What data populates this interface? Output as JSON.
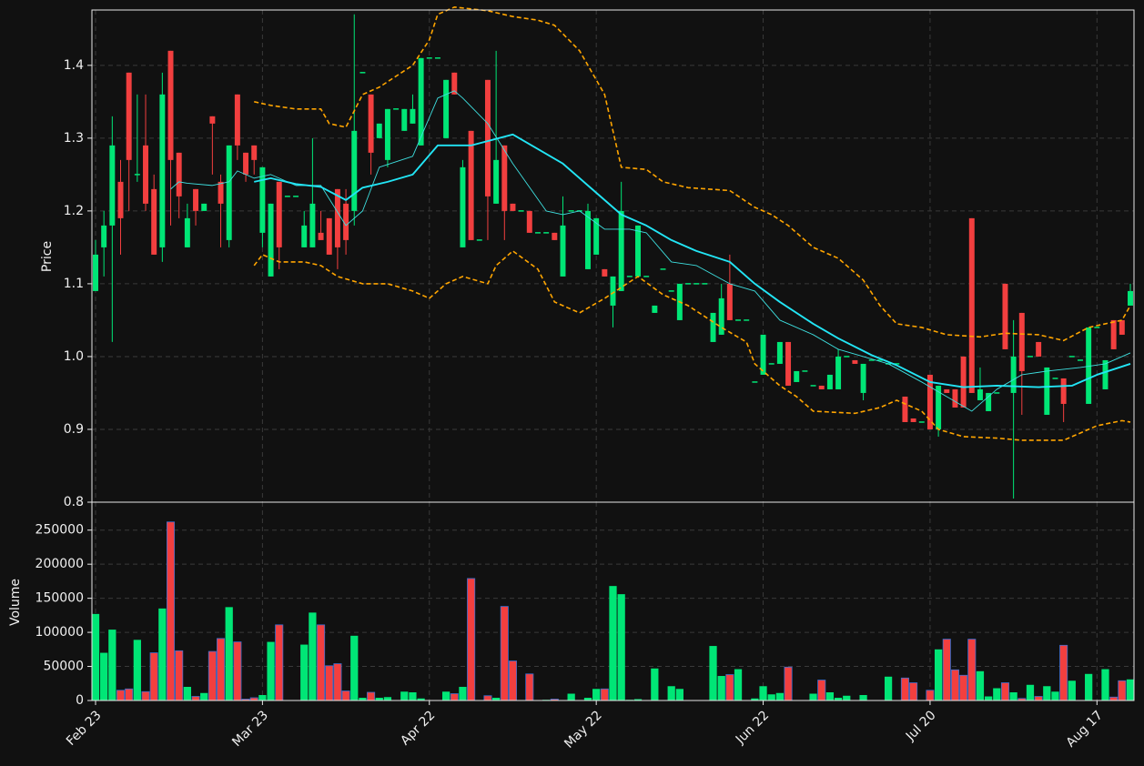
{
  "chart_data": {
    "type": "candlestick",
    "ylabel": "Price",
    "volume_ylabel": "Volume",
    "up_color": "#00e676",
    "down_color": "#f23f3f",
    "volume_edge_color": "#3b6fd1",
    "grid": true,
    "categories": [
      "Feb 23",
      null,
      null,
      null,
      null,
      null,
      null,
      null,
      null,
      null,
      null,
      null,
      null,
      null,
      null,
      null,
      null,
      null,
      null,
      null,
      "Mar 23",
      null,
      null,
      null,
      null,
      null,
      null,
      null,
      null,
      null,
      null,
      null,
      null,
      null,
      null,
      null,
      null,
      null,
      null,
      null,
      "Apr 22",
      null,
      null,
      null,
      null,
      null,
      null,
      null,
      null,
      null,
      null,
      null,
      null,
      null,
      null,
      null,
      null,
      null,
      null,
      null,
      "May 22",
      null,
      null,
      null,
      null,
      null,
      null,
      null,
      null,
      null,
      null,
      null,
      null,
      null,
      null,
      null,
      null,
      null,
      null,
      null,
      "Jun 22",
      null,
      null,
      null,
      null,
      null,
      null,
      null,
      null,
      null,
      null,
      null,
      null,
      null,
      null,
      null,
      null,
      null,
      null,
      null,
      "Jul 20",
      null,
      null,
      null,
      null,
      null,
      null,
      null,
      null,
      null,
      null,
      null,
      null,
      null,
      null,
      null,
      null,
      null,
      null,
      null,
      "Aug 17",
      null,
      null,
      null,
      null
    ],
    "open": [
      1.09,
      1.15,
      1.18,
      1.24,
      1.39,
      1.25,
      1.29,
      1.23,
      1.15,
      1.42,
      1.28,
      1.15,
      1.23,
      1.2,
      1.33,
      1.24,
      1.16,
      1.36,
      1.28,
      1.29,
      1.17,
      1.11,
      1.24,
      1.22,
      1.22,
      1.15,
      1.15,
      1.17,
      1.19,
      1.23,
      1.21,
      1.2,
      1.39,
      1.36,
      1.3,
      1.27,
      1.34,
      1.31,
      1.32,
      1.29,
      1.41,
      1.41,
      1.3,
      1.39,
      1.15,
      1.31,
      1.16,
      1.38,
      1.21,
      1.29,
      1.21,
      1.2,
      1.2,
      1.17,
      1.17,
      1.17,
      1.11,
      1.2,
      1.2,
      1.12,
      1.14,
      1.12,
      1.07,
      1.09,
      1.11,
      1.11,
      1.11,
      1.06,
      1.12,
      1.09,
      1.05,
      1.1,
      1.1,
      1.1,
      1.02,
      1.03,
      1.1,
      1.05,
      1.05,
      0.965,
      0.975,
      0.99,
      0.99,
      1.02,
      0.965,
      0.98,
      0.96,
      0.96,
      0.955,
      0.955,
      1.0,
      0.995,
      0.95,
      0.995,
      0.995,
      0.99,
      0.99,
      0.945,
      0.915,
      0.91,
      0.975,
      0.9,
      0.955,
      0.955,
      1.0,
      1.19,
      0.94,
      0.925,
      0.95,
      1.1,
      0.95,
      1.06,
      1.0,
      1.02,
      0.92,
      0.97,
      0.97,
      1.0,
      0.995,
      0.935,
      1.04,
      0.955,
      1.05,
      1.05,
      1.07
    ],
    "high": [
      1.16,
      1.2,
      1.33,
      1.27,
      1.39,
      1.36,
      1.36,
      1.25,
      1.39,
      1.42,
      1.28,
      1.21,
      1.23,
      1.21,
      1.33,
      1.25,
      1.29,
      1.36,
      1.28,
      1.29,
      1.26,
      1.21,
      1.24,
      1.22,
      1.22,
      1.2,
      1.3,
      1.2,
      1.19,
      1.23,
      1.23,
      1.47,
      1.39,
      1.36,
      1.32,
      1.34,
      1.34,
      1.34,
      1.36,
      1.41,
      1.41,
      1.41,
      1.38,
      1.39,
      1.27,
      1.31,
      1.16,
      1.38,
      1.42,
      1.29,
      1.21,
      1.2,
      1.2,
      1.17,
      1.17,
      1.17,
      1.22,
      1.2,
      1.2,
      1.21,
      1.19,
      1.12,
      1.11,
      1.24,
      1.11,
      1.18,
      1.11,
      1.07,
      1.12,
      1.09,
      1.1,
      1.1,
      1.1,
      1.1,
      1.06,
      1.1,
      1.14,
      1.05,
      1.05,
      0.965,
      1.03,
      0.99,
      1.02,
      1.02,
      0.98,
      0.98,
      0.96,
      0.96,
      0.975,
      1.01,
      1.0,
      0.995,
      0.99,
      0.995,
      0.995,
      0.99,
      0.99,
      0.945,
      0.915,
      0.91,
      0.975,
      0.96,
      0.955,
      0.955,
      1.0,
      1.19,
      0.985,
      0.95,
      0.95,
      1.1,
      1.05,
      1.06,
      1.0,
      1.02,
      0.985,
      0.97,
      0.97,
      1.0,
      0.995,
      1.04,
      1.04,
      0.995,
      1.05,
      1.05,
      1.1
    ],
    "low": [
      1.09,
      1.11,
      1.02,
      1.14,
      1.2,
      1.24,
      1.2,
      1.14,
      1.13,
      1.18,
      1.19,
      1.15,
      1.18,
      1.2,
      1.25,
      1.15,
      1.15,
      1.27,
      1.24,
      1.25,
      1.15,
      1.11,
      1.12,
      1.22,
      1.22,
      1.15,
      1.15,
      1.16,
      1.14,
      1.12,
      1.14,
      1.18,
      1.39,
      1.25,
      1.3,
      1.26,
      1.34,
      1.31,
      1.32,
      1.29,
      1.41,
      1.41,
      1.3,
      1.36,
      1.15,
      1.16,
      1.16,
      1.16,
      1.21,
      1.16,
      1.2,
      1.2,
      1.17,
      1.17,
      1.17,
      1.16,
      1.11,
      1.2,
      1.2,
      1.12,
      1.14,
      1.11,
      1.04,
      1.09,
      1.11,
      1.11,
      1.11,
      1.06,
      1.12,
      1.09,
      1.05,
      1.1,
      1.1,
      1.1,
      1.02,
      1.03,
      1.05,
      1.05,
      1.05,
      0.965,
      0.975,
      0.99,
      0.99,
      0.96,
      0.965,
      0.98,
      0.96,
      0.955,
      0.955,
      0.955,
      1.0,
      0.99,
      0.94,
      0.995,
      0.995,
      0.99,
      0.99,
      0.91,
      0.91,
      0.91,
      0.9,
      0.89,
      0.95,
      0.93,
      0.93,
      0.95,
      0.94,
      0.925,
      0.95,
      1.01,
      0.805,
      0.92,
      1.0,
      1.0,
      0.92,
      0.97,
      0.91,
      1.0,
      0.995,
      0.935,
      1.04,
      0.955,
      1.01,
      1.03,
      1.07
    ],
    "close": [
      1.14,
      1.18,
      1.29,
      1.19,
      1.27,
      1.25,
      1.21,
      1.14,
      1.36,
      1.27,
      1.22,
      1.19,
      1.2,
      1.21,
      1.32,
      1.21,
      1.29,
      1.29,
      1.25,
      1.27,
      1.26,
      1.21,
      1.15,
      1.22,
      1.22,
      1.18,
      1.21,
      1.16,
      1.14,
      1.15,
      1.16,
      1.31,
      1.39,
      1.28,
      1.32,
      1.34,
      1.34,
      1.34,
      1.34,
      1.41,
      1.41,
      1.41,
      1.38,
      1.36,
      1.26,
      1.16,
      1.16,
      1.22,
      1.27,
      1.2,
      1.2,
      1.2,
      1.17,
      1.17,
      1.17,
      1.16,
      1.18,
      1.2,
      1.2,
      1.2,
      1.19,
      1.11,
      1.11,
      1.2,
      1.11,
      1.18,
      1.11,
      1.07,
      1.12,
      1.09,
      1.1,
      1.1,
      1.1,
      1.1,
      1.06,
      1.08,
      1.05,
      1.05,
      1.05,
      0.965,
      1.03,
      0.99,
      1.02,
      0.96,
      0.98,
      0.98,
      0.96,
      0.955,
      0.975,
      1.0,
      1.0,
      0.99,
      0.99,
      0.995,
      0.995,
      0.99,
      0.99,
      0.91,
      0.91,
      0.91,
      0.9,
      0.96,
      0.95,
      0.93,
      0.93,
      0.95,
      0.955,
      0.95,
      0.95,
      1.01,
      1.0,
      0.98,
      1.0,
      1.0,
      0.985,
      0.97,
      0.935,
      1.0,
      0.995,
      1.04,
      1.04,
      0.995,
      1.01,
      1.03,
      1.09
    ],
    "volume": [
      127000,
      70000,
      104000,
      15000,
      17000,
      89000,
      13000,
      70000,
      135000,
      262000,
      73000,
      20000,
      6000,
      11000,
      72000,
      91000,
      137000,
      86000,
      2000,
      4000,
      8000,
      86000,
      111000,
      0,
      0,
      82000,
      129000,
      111000,
      51000,
      54000,
      14000,
      95000,
      4000,
      12000,
      4000,
      5000,
      0,
      13000,
      12000,
      3000,
      0,
      0,
      13000,
      10000,
      20000,
      179000,
      0,
      7000,
      4000,
      138000,
      58000,
      0,
      39000,
      0,
      1000,
      2000,
      0,
      10000,
      0,
      4000,
      17000,
      17000,
      168000,
      156000,
      1000,
      2000,
      0,
      47000,
      0,
      21000,
      17000,
      0,
      0,
      0,
      80000,
      36000,
      38000,
      46000,
      0,
      3000,
      21000,
      9000,
      11000,
      49000,
      0,
      0,
      10000,
      30000,
      12000,
      4000,
      7000,
      0,
      8000,
      0,
      0,
      35000,
      0,
      33000,
      26000,
      0,
      15000,
      75000,
      90000,
      45000,
      37000,
      90000,
      43000,
      6000,
      18000,
      26000,
      12000,
      3000,
      23000,
      6000,
      21000,
      13000,
      81000,
      29000,
      0,
      39000,
      0,
      46000,
      5000,
      29000,
      31000
    ],
    "ylim": [
      0.8,
      1.476
    ],
    "yticks": [
      0.8,
      0.9,
      {
        "value": 1,
        "label": "1.0"
      },
      1.1,
      1.2,
      1.3,
      1.4
    ],
    "volume_ylim": [
      0,
      291000
    ],
    "volume_yticks": [
      0,
      50000,
      100000,
      150000,
      200000,
      250000
    ],
    "lines": [
      {
        "color": "#ffa500",
        "style": "dashed",
        "x": [
          19,
          21,
          24,
          27,
          28,
          30,
          32,
          34,
          38,
          40,
          41,
          43,
          47,
          50,
          53,
          55,
          58,
          61,
          63,
          66,
          68,
          71,
          76,
          79,
          81,
          83,
          86,
          89,
          92,
          94,
          96,
          99,
          102,
          106,
          109,
          113,
          116,
          119,
          123,
          124
        ],
        "values": [
          1.35,
          1.345,
          1.34,
          1.34,
          1.32,
          1.315,
          1.36,
          1.37,
          1.4,
          1.435,
          1.47,
          1.48,
          1.475,
          1.467,
          1.462,
          1.455,
          1.42,
          1.36,
          1.26,
          1.257,
          1.24,
          1.232,
          1.228,
          1.205,
          1.195,
          1.18,
          1.15,
          1.135,
          1.105,
          1.07,
          1.045,
          1.04,
          1.03,
          1.027,
          1.032,
          1.03,
          1.022,
          1.04,
          1.05,
          1.07
        ]
      },
      {
        "color": "#ffa500",
        "style": "dashed",
        "x": [
          19,
          20,
          22,
          25,
          27,
          29,
          32,
          35,
          38,
          40,
          42,
          44,
          47,
          48,
          50,
          53,
          55,
          58,
          61,
          65,
          68,
          71,
          75,
          78,
          79,
          82,
          84,
          86,
          91,
          94,
          96,
          99,
          101,
          104,
          108,
          111,
          116,
          118,
          120,
          123,
          124
        ],
        "values": [
          1.125,
          1.14,
          1.13,
          1.13,
          1.125,
          1.11,
          1.1,
          1.1,
          1.09,
          1.08,
          1.1,
          1.11,
          1.1,
          1.125,
          1.145,
          1.12,
          1.075,
          1.06,
          1.08,
          1.11,
          1.085,
          1.07,
          1.04,
          1.02,
          0.99,
          0.96,
          0.945,
          0.925,
          0.922,
          0.93,
          0.94,
          0.925,
          0.9,
          0.89,
          0.888,
          0.885,
          0.885,
          0.895,
          0.905,
          0.912,
          0.91
        ]
      },
      {
        "color": "#3ee0e0",
        "style": "thin",
        "x": [
          9,
          10,
          11,
          14,
          16,
          17,
          19,
          21,
          24,
          27,
          30,
          32,
          34,
          38,
          41,
          43,
          44,
          47,
          50,
          54,
          56,
          58,
          61,
          64,
          66,
          69,
          72,
          76,
          79,
          82,
          86,
          89,
          92,
          95,
          99,
          102,
          105,
          108,
          111,
          114,
          118,
          121,
          124
        ],
        "values": [
          1.23,
          1.24,
          1.238,
          1.235,
          1.24,
          1.255,
          1.245,
          1.25,
          1.235,
          1.235,
          1.18,
          1.2,
          1.26,
          1.275,
          1.355,
          1.365,
          1.355,
          1.32,
          1.265,
          1.2,
          1.195,
          1.2,
          1.175,
          1.175,
          1.17,
          1.13,
          1.125,
          1.1,
          1.09,
          1.05,
          1.03,
          1.01,
          1.0,
          0.99,
          0.965,
          0.945,
          0.925,
          0.955,
          0.975,
          0.98,
          0.985,
          0.99,
          1.005
        ]
      },
      {
        "color": "#22e5f5",
        "style": "thick",
        "x": [
          19,
          21,
          24,
          27,
          30,
          32,
          35,
          38,
          41,
          45,
          50,
          53,
          56,
          59,
          63,
          66,
          69,
          72,
          76,
          79,
          82,
          86,
          89,
          93,
          96,
          100,
          104,
          108,
          113,
          117,
          120,
          124
        ],
        "values": [
          1.24,
          1.245,
          1.237,
          1.233,
          1.215,
          1.232,
          1.24,
          1.25,
          1.29,
          1.29,
          1.305,
          1.285,
          1.265,
          1.235,
          1.195,
          1.18,
          1.16,
          1.145,
          1.13,
          1.1,
          1.075,
          1.045,
          1.025,
          1.002,
          0.988,
          0.965,
          0.958,
          0.96,
          0.958,
          0.96,
          0.975,
          0.99
        ]
      }
    ]
  }
}
